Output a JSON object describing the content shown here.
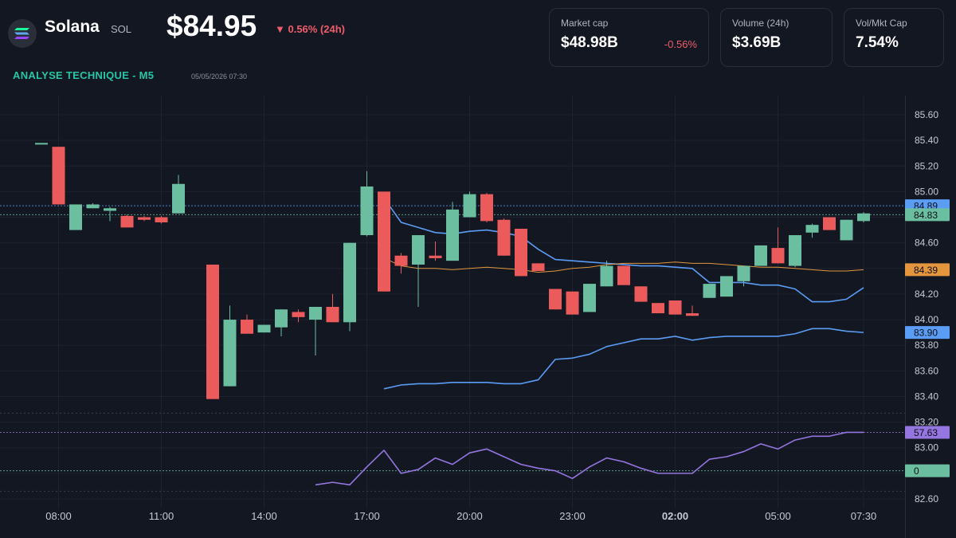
{
  "header": {
    "coin_name": "Solana",
    "coin_symbol": "SOL",
    "price": "$84.95",
    "change_24h": "▼ 0.56% (24h)",
    "analysis_title": "ANALYSE TECHNIQUE - M5",
    "analysis_date": "05/05/2026 07:30",
    "logo_icon": "solana-logo-icon"
  },
  "cards": [
    {
      "label": "Market cap",
      "value": "$48.98B",
      "change": "-0.56%"
    },
    {
      "label": "Volume (24h)",
      "value": "$3.69B",
      "change": ""
    },
    {
      "label": "Vol/Mkt Cap",
      "value": "7.54%",
      "change": ""
    }
  ],
  "colors": {
    "background": "#131722",
    "up": "#6bbfa0",
    "down": "#ec5b5b",
    "band": "#5b9cf5",
    "middle": "#e3963e",
    "rsi": "#9575e0",
    "grid": "#1e2230",
    "axis_text": "#c7cad1",
    "positive_accent": "#26c6a4",
    "negative_accent": "#f05d6a"
  },
  "chart_data": {
    "type": "candlestick",
    "price_axis": {
      "min": 82.6,
      "max": 85.6,
      "ticks": [
        "85.60",
        "85.40",
        "85.20",
        "85.00",
        "84.80",
        "84.60",
        "84.40",
        "84.20",
        "84.00",
        "83.80",
        "83.60",
        "83.40",
        "83.20",
        "83.00",
        "82.80",
        "82.60"
      ]
    },
    "time_axis": {
      "labels": [
        {
          "label": "08:00",
          "t": -1.5
        },
        {
          "label": "11:00",
          "t": 1.5
        },
        {
          "label": "14:00",
          "t": 4.5
        },
        {
          "label": "17:00",
          "t": 7.5
        },
        {
          "label": "20:00",
          "t": 10.5
        },
        {
          "label": "23:00",
          "t": 13.5
        },
        {
          "label": "02:00",
          "t": 16.5,
          "bold": true
        },
        {
          "label": "05:00",
          "t": 19.5
        },
        {
          "label": "07:30",
          "t": 22
        }
      ]
    },
    "candles": [
      {
        "t": -2,
        "o": 85.38,
        "h": 85.38,
        "l": 85.38,
        "c": 85.38
      },
      {
        "t": -1.5,
        "o": 85.35,
        "h": 85.35,
        "l": 84.9,
        "c": 84.9
      },
      {
        "t": -1,
        "o": 84.7,
        "h": 84.9,
        "l": 84.7,
        "c": 84.9
      },
      {
        "t": -0.5,
        "o": 84.87,
        "h": 84.91,
        "l": 84.87,
        "c": 84.9
      },
      {
        "t": 0,
        "o": 84.85,
        "h": 84.88,
        "l": 84.77,
        "c": 84.87
      },
      {
        "t": 0.5,
        "o": 84.81,
        "h": 84.82,
        "l": 84.72,
        "c": 84.72
      },
      {
        "t": 1,
        "o": 84.8,
        "h": 84.81,
        "l": 84.77,
        "c": 84.78
      },
      {
        "t": 1.5,
        "o": 84.8,
        "h": 84.81,
        "l": 84.75,
        "c": 84.76
      },
      {
        "t": 2,
        "o": 84.83,
        "h": 85.13,
        "l": 84.83,
        "c": 85.06
      },
      {
        "t": 3,
        "o": 84.43,
        "h": 84.43,
        "l": 83.38,
        "c": 83.38
      },
      {
        "t": 3.5,
        "o": 83.48,
        "h": 84.11,
        "l": 83.48,
        "c": 84.0
      },
      {
        "t": 4,
        "o": 84.0,
        "h": 84.04,
        "l": 83.89,
        "c": 83.89
      },
      {
        "t": 4.5,
        "o": 83.9,
        "h": 83.96,
        "l": 83.9,
        "c": 83.96
      },
      {
        "t": 5,
        "o": 83.94,
        "h": 84.08,
        "l": 83.87,
        "c": 84.08
      },
      {
        "t": 5.5,
        "o": 84.06,
        "h": 84.08,
        "l": 83.98,
        "c": 84.02
      },
      {
        "t": 6,
        "o": 84.0,
        "h": 84.1,
        "l": 83.72,
        "c": 84.1
      },
      {
        "t": 6.5,
        "o": 84.1,
        "h": 84.2,
        "l": 83.98,
        "c": 83.98
      },
      {
        "t": 7,
        "o": 83.98,
        "h": 84.6,
        "l": 83.91,
        "c": 84.6
      },
      {
        "t": 7.5,
        "o": 84.66,
        "h": 85.16,
        "l": 84.65,
        "c": 85.04
      },
      {
        "t": 8,
        "o": 85.0,
        "h": 85.0,
        "l": 84.22,
        "c": 84.22
      },
      {
        "t": 8.5,
        "o": 84.5,
        "h": 84.52,
        "l": 84.36,
        "c": 84.42
      },
      {
        "t": 9,
        "o": 84.43,
        "h": 84.66,
        "l": 84.1,
        "c": 84.66
      },
      {
        "t": 9.5,
        "o": 84.5,
        "h": 84.61,
        "l": 84.46,
        "c": 84.48
      },
      {
        "t": 10,
        "o": 84.46,
        "h": 84.92,
        "l": 84.46,
        "c": 84.86
      },
      {
        "t": 10.5,
        "o": 84.8,
        "h": 85.0,
        "l": 84.8,
        "c": 84.98
      },
      {
        "t": 11,
        "o": 84.98,
        "h": 84.99,
        "l": 84.76,
        "c": 84.77
      },
      {
        "t": 11.5,
        "o": 84.78,
        "h": 84.79,
        "l": 84.5,
        "c": 84.5
      },
      {
        "t": 12,
        "o": 84.71,
        "h": 84.71,
        "l": 84.34,
        "c": 84.34
      },
      {
        "t": 12.5,
        "o": 84.44,
        "h": 84.44,
        "l": 84.38,
        "c": 84.38
      },
      {
        "t": 13,
        "o": 84.24,
        "h": 84.24,
        "l": 84.08,
        "c": 84.08
      },
      {
        "t": 13.5,
        "o": 84.22,
        "h": 84.22,
        "l": 84.04,
        "c": 84.04
      },
      {
        "t": 14,
        "o": 84.06,
        "h": 84.28,
        "l": 84.06,
        "c": 84.28
      },
      {
        "t": 14.5,
        "o": 84.26,
        "h": 84.46,
        "l": 84.26,
        "c": 84.42
      },
      {
        "t": 15,
        "o": 84.42,
        "h": 84.42,
        "l": 84.27,
        "c": 84.27
      },
      {
        "t": 15.5,
        "o": 84.26,
        "h": 84.26,
        "l": 84.14,
        "c": 84.14
      },
      {
        "t": 16,
        "o": 84.13,
        "h": 84.13,
        "l": 84.05,
        "c": 84.05
      },
      {
        "t": 16.5,
        "o": 84.15,
        "h": 84.15,
        "l": 84.04,
        "c": 84.04
      },
      {
        "t": 17,
        "o": 84.05,
        "h": 84.11,
        "l": 84.03,
        "c": 84.03
      },
      {
        "t": 17.5,
        "o": 84.17,
        "h": 84.28,
        "l": 84.17,
        "c": 84.28
      },
      {
        "t": 18,
        "o": 84.18,
        "h": 84.34,
        "l": 84.18,
        "c": 84.34
      },
      {
        "t": 18.5,
        "o": 84.3,
        "h": 84.42,
        "l": 84.26,
        "c": 84.42
      },
      {
        "t": 19,
        "o": 84.42,
        "h": 84.58,
        "l": 84.42,
        "c": 84.58
      },
      {
        "t": 19.5,
        "o": 84.56,
        "h": 84.72,
        "l": 84.44,
        "c": 84.44
      },
      {
        "t": 20,
        "o": 84.42,
        "h": 84.66,
        "l": 84.41,
        "c": 84.66
      },
      {
        "t": 20.5,
        "o": 84.68,
        "h": 84.75,
        "l": 84.64,
        "c": 84.74
      },
      {
        "t": 21,
        "o": 84.8,
        "h": 84.8,
        "l": 84.7,
        "c": 84.7
      },
      {
        "t": 21.5,
        "o": 84.62,
        "h": 84.78,
        "l": 84.62,
        "c": 84.78
      },
      {
        "t": 22,
        "o": 84.77,
        "h": 84.84,
        "l": 84.76,
        "c": 84.83
      }
    ],
    "upper_band": [
      [
        8,
        84.95
      ],
      [
        8.5,
        84.76
      ],
      [
        9,
        84.72
      ],
      [
        9.5,
        84.68
      ],
      [
        10,
        84.67
      ],
      [
        10.5,
        84.69
      ],
      [
        11,
        84.7
      ],
      [
        11.5,
        84.68
      ],
      [
        12,
        84.65
      ],
      [
        12.5,
        84.55
      ],
      [
        13,
        84.47
      ],
      [
        13.5,
        84.46
      ],
      [
        14,
        84.45
      ],
      [
        14.5,
        84.44
      ],
      [
        15,
        84.43
      ],
      [
        15.5,
        84.42
      ],
      [
        16,
        84.42
      ],
      [
        16.5,
        84.41
      ],
      [
        17,
        84.4
      ],
      [
        17.5,
        84.29
      ],
      [
        18,
        84.29
      ],
      [
        18.5,
        84.29
      ],
      [
        19,
        84.27
      ],
      [
        19.5,
        84.27
      ],
      [
        20,
        84.24
      ],
      [
        20.5,
        84.14
      ],
      [
        21,
        84.14
      ],
      [
        21.5,
        84.16
      ],
      [
        22,
        84.25
      ]
    ],
    "middle_band": [
      [
        8,
        84.48
      ],
      [
        8.5,
        84.42
      ],
      [
        9,
        84.4
      ],
      [
        9.5,
        84.4
      ],
      [
        10,
        84.39
      ],
      [
        10.5,
        84.4
      ],
      [
        11,
        84.41
      ],
      [
        11.5,
        84.4
      ],
      [
        12,
        84.39
      ],
      [
        12.5,
        84.37
      ],
      [
        13,
        84.38
      ],
      [
        13.5,
        84.4
      ],
      [
        14,
        84.41
      ],
      [
        14.5,
        84.43
      ],
      [
        15,
        84.44
      ],
      [
        15.5,
        84.44
      ],
      [
        16,
        84.44
      ],
      [
        16.5,
        84.45
      ],
      [
        17,
        84.44
      ],
      [
        17.5,
        84.44
      ],
      [
        18,
        84.43
      ],
      [
        18.5,
        84.42
      ],
      [
        19,
        84.41
      ],
      [
        19.5,
        84.41
      ],
      [
        20,
        84.4
      ],
      [
        20.5,
        84.39
      ],
      [
        21,
        84.38
      ],
      [
        21.5,
        84.38
      ],
      [
        22,
        84.39
      ]
    ],
    "lower_band": [
      [
        8,
        83.46
      ],
      [
        8.5,
        83.49
      ],
      [
        9,
        83.5
      ],
      [
        9.5,
        83.5
      ],
      [
        10,
        83.51
      ],
      [
        10.5,
        83.51
      ],
      [
        11,
        83.51
      ],
      [
        11.5,
        83.5
      ],
      [
        12,
        83.5
      ],
      [
        12.5,
        83.53
      ],
      [
        13,
        83.69
      ],
      [
        13.5,
        83.7
      ],
      [
        14,
        83.73
      ],
      [
        14.5,
        83.79
      ],
      [
        15,
        83.82
      ],
      [
        15.5,
        83.85
      ],
      [
        16,
        83.85
      ],
      [
        16.5,
        83.87
      ],
      [
        17,
        83.84
      ],
      [
        17.5,
        83.86
      ],
      [
        18,
        83.87
      ],
      [
        18.5,
        83.87
      ],
      [
        19,
        83.87
      ],
      [
        19.5,
        83.87
      ],
      [
        20,
        83.89
      ],
      [
        20.5,
        83.93
      ],
      [
        21,
        83.93
      ],
      [
        21.5,
        83.91
      ],
      [
        22,
        83.9
      ]
    ],
    "rsi": [
      [
        6,
        82.71
      ],
      [
        6.5,
        82.73
      ],
      [
        7,
        82.71
      ],
      [
        7.5,
        82.85
      ],
      [
        8,
        82.98
      ],
      [
        8.5,
        82.8
      ],
      [
        9,
        82.83
      ],
      [
        9.5,
        82.92
      ],
      [
        10,
        82.87
      ],
      [
        10.5,
        82.96
      ],
      [
        11,
        82.99
      ],
      [
        11.5,
        82.93
      ],
      [
        12,
        82.87
      ],
      [
        12.5,
        82.84
      ],
      [
        13,
        82.82
      ],
      [
        13.5,
        82.76
      ],
      [
        14,
        82.85
      ],
      [
        14.5,
        82.92
      ],
      [
        15,
        82.89
      ],
      [
        15.5,
        82.84
      ],
      [
        16,
        82.8
      ],
      [
        16.5,
        82.8
      ],
      [
        17,
        82.8
      ],
      [
        17.5,
        82.91
      ],
      [
        18,
        82.93
      ],
      [
        18.5,
        82.97
      ],
      [
        19,
        83.03
      ],
      [
        19.5,
        82.99
      ],
      [
        20,
        83.06
      ],
      [
        20.5,
        83.09
      ],
      [
        21,
        83.09
      ],
      [
        21.5,
        83.12
      ],
      [
        22,
        83.12
      ]
    ],
    "levels": [
      {
        "label": "84.89",
        "price": 84.89,
        "color": "#5b9cf5",
        "line": true
      },
      {
        "label": "84.83",
        "price": 84.82,
        "color": "#6bbfa0",
        "line": true
      },
      {
        "label": "84.39",
        "price": 84.39,
        "color": "#e3963e",
        "line": false
      },
      {
        "label": "83.90",
        "price": 83.9,
        "color": "#5b9cf5",
        "line": false
      },
      {
        "label": "57.63",
        "price": 83.12,
        "color": "#9575e0",
        "line": true
      },
      {
        "label": "0",
        "price": 82.82,
        "color": "#6bbfa0",
        "line": true
      }
    ],
    "dotted_levels": [
      83.27,
      82.66
    ]
  }
}
